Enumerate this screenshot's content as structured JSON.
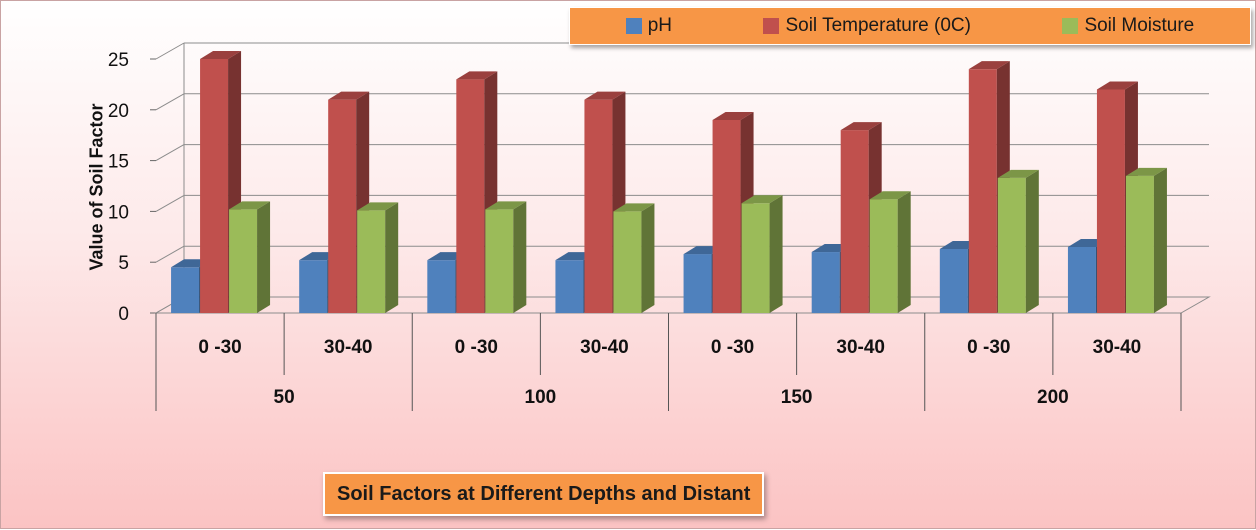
{
  "chart_data": {
    "type": "bar",
    "title": "Soil Factors at Different Depths and Distant",
    "ylabel": "Value of Soil Factor",
    "xlabel": "",
    "ylim": [
      0,
      25
    ],
    "yticks": [
      0,
      5,
      10,
      15,
      20,
      25
    ],
    "grid": true,
    "legend_position": "top-right",
    "group_labels": [
      "50",
      "100",
      "150",
      "200"
    ],
    "categories": [
      "0 -30",
      "30-40",
      "0 -30",
      "30-40",
      "0 -30",
      "30-40",
      "0 -30",
      "30-40"
    ],
    "series": [
      {
        "name": "pH",
        "color": "#4f81bd",
        "values": [
          4.5,
          5.2,
          5.2,
          5.2,
          5.8,
          6.0,
          6.3,
          6.5
        ]
      },
      {
        "name": "Soil Temperature (0C)",
        "color": "#c0504d",
        "values": [
          25,
          21,
          23,
          21,
          19,
          18,
          24,
          22
        ]
      },
      {
        "name": "Soil Moisture",
        "color": "#9bbb59",
        "values": [
          10.2,
          10.1,
          10.2,
          10.0,
          10.8,
          11.2,
          13.3,
          13.5
        ]
      }
    ]
  }
}
